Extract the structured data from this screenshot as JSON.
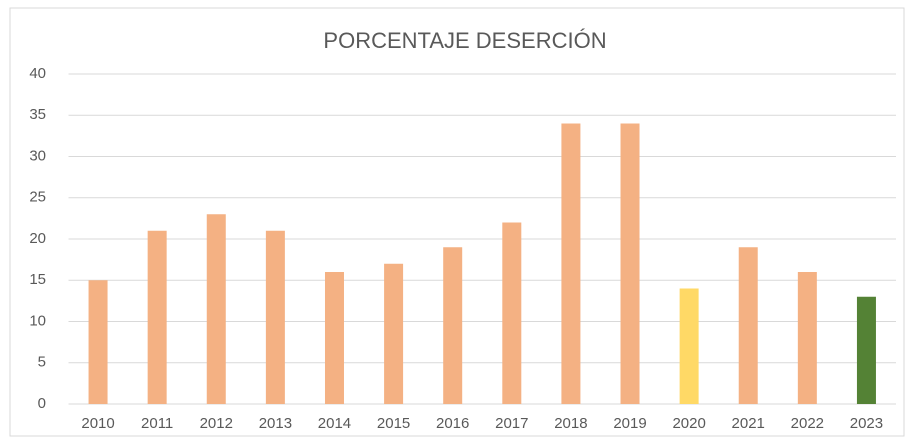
{
  "chart_data": {
    "type": "bar",
    "title": "PORCENTAJE DESERCIÓN",
    "categories": [
      "2010",
      "2011",
      "2012",
      "2013",
      "2014",
      "2015",
      "2016",
      "2017",
      "2018",
      "2019",
      "2020",
      "2021",
      "2022",
      "2023"
    ],
    "values": [
      15,
      21,
      23,
      21,
      16,
      17,
      19,
      22,
      34,
      34,
      14,
      19,
      16,
      13
    ],
    "colors": [
      "#f4b183",
      "#f4b183",
      "#f4b183",
      "#f4b183",
      "#f4b183",
      "#f4b183",
      "#f4b183",
      "#f4b183",
      "#f4b183",
      "#f4b183",
      "#ffd966",
      "#f4b183",
      "#f4b183",
      "#548235"
    ],
    "ylim": [
      0,
      40
    ],
    "yticks": [
      0,
      5,
      10,
      15,
      20,
      25,
      30,
      35,
      40
    ],
    "grid": true
  }
}
